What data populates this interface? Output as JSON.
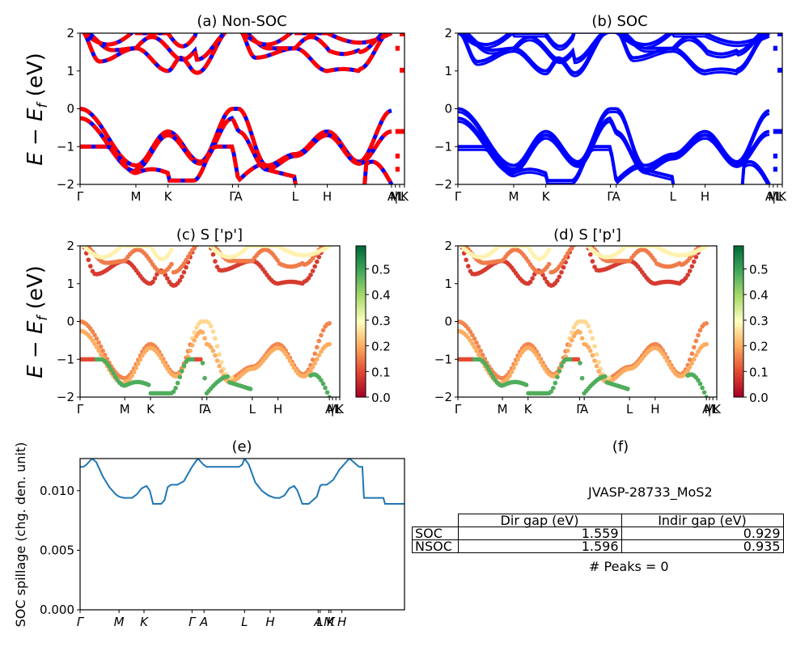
{
  "chart_data": [
    {
      "id": "a",
      "type": "line",
      "title": "(a) Non-SOC",
      "ylabel": "E − E_f (eV)",
      "ylim": [
        -2,
        2
      ],
      "yticks": [
        "2",
        "1",
        "0",
        "−1",
        "−2"
      ],
      "ytick_values": [
        2,
        1,
        0,
        -1,
        -2
      ],
      "kpath_labels": [
        "Γ",
        "M",
        "K",
        "Γ",
        "A",
        "L",
        "H",
        "A",
        "M",
        "|L",
        "K"
      ],
      "kpath_positions": [
        0,
        0.172,
        0.271,
        0.47,
        0.488,
        0.663,
        0.762,
        0.96,
        0.972,
        0.985,
        1.0
      ],
      "series": [
        {
          "name": "Non-SOC bands",
          "color": "#ff0000",
          "style": "solid"
        },
        {
          "name": "SOC bands",
          "color": "#0000ff",
          "style": "dashed"
        }
      ]
    },
    {
      "id": "b",
      "type": "line",
      "title": "(b) SOC",
      "ylim": [
        -2,
        2
      ],
      "yticks": [
        "2",
        "1",
        "0",
        "−1",
        "−2"
      ],
      "ytick_values": [
        2,
        1,
        0,
        -1,
        -2
      ],
      "kpath_labels": [
        "Γ",
        "M",
        "K",
        "Γ",
        "A",
        "L",
        "H",
        "A",
        "M",
        "|L",
        "K"
      ],
      "kpath_positions": [
        0,
        0.172,
        0.271,
        0.47,
        0.488,
        0.663,
        0.762,
        0.96,
        0.972,
        0.985,
        1.0
      ],
      "series": [
        {
          "name": "SOC bands",
          "color": "#0000ff",
          "style": "solid"
        }
      ]
    },
    {
      "id": "c",
      "type": "scatter",
      "title": "(c)  S ['p']",
      "ylabel": "E − E_f (eV)",
      "ylim": [
        -2,
        2
      ],
      "yticks": [
        "2",
        "1",
        "0",
        "−1",
        "−2"
      ],
      "ytick_values": [
        2,
        1,
        0,
        -1,
        -2
      ],
      "kpath_labels": [
        "Γ",
        "M",
        "K",
        "Γ",
        "A",
        "L",
        "H",
        "A",
        "M",
        "|L",
        "K"
      ],
      "kpath_positions": [
        0,
        0.172,
        0.271,
        0.47,
        0.488,
        0.663,
        0.762,
        0.96,
        0.972,
        0.985,
        1.0
      ],
      "colorbar": {
        "cmap": "RdYlGn",
        "range": [
          0,
          0.59
        ],
        "ticks": [
          "0.0",
          "0.1",
          "0.2",
          "0.3",
          "0.4",
          "0.5"
        ],
        "tick_values": [
          0,
          0.1,
          0.2,
          0.3,
          0.4,
          0.5
        ]
      }
    },
    {
      "id": "d",
      "type": "scatter",
      "title": "(d) S ['p']",
      "ylim": [
        -2,
        2
      ],
      "yticks": [
        "2",
        "1",
        "0",
        "−1",
        "−2"
      ],
      "ytick_values": [
        2,
        1,
        0,
        -1,
        -2
      ],
      "kpath_labels": [
        "Γ",
        "M",
        "K",
        "Γ",
        "A",
        "L",
        "H",
        "A",
        "M",
        "|L",
        "K"
      ],
      "kpath_positions": [
        0,
        0.172,
        0.271,
        0.47,
        0.488,
        0.663,
        0.762,
        0.96,
        0.972,
        0.985,
        1.0
      ],
      "colorbar": {
        "cmap": "RdYlGn",
        "range": [
          0,
          0.59
        ],
        "ticks": [
          "0.0",
          "0.1",
          "0.2",
          "0.3",
          "0.4",
          "0.5"
        ],
        "tick_values": [
          0,
          0.1,
          0.2,
          0.3,
          0.4,
          0.5
        ]
      }
    },
    {
      "id": "e",
      "type": "line",
      "title": "(e)",
      "ylabel": "SOC spillage (chg. den. unit)",
      "ylim": [
        0,
        0.0127
      ],
      "yticks": [
        "0.000",
        "0.005",
        "0.010"
      ],
      "ytick_values": [
        0,
        0.005,
        0.01
      ],
      "kpath_labels": [
        "Γ",
        "M",
        "K",
        "Γ",
        "A",
        "L",
        "H",
        "A",
        "L",
        "M",
        "K",
        "H"
      ],
      "kpath_positions": [
        0,
        0.12,
        0.197,
        0.345,
        0.382,
        0.507,
        0.586,
        0.734,
        0.74,
        0.767,
        0.773,
        0.807
      ],
      "series": [
        {
          "name": "spillage",
          "color": "#1f77b4",
          "x": [
            0,
            0.01,
            0.02,
            0.037,
            0.05,
            0.07,
            0.09,
            0.11,
            0.12,
            0.135,
            0.16,
            0.175,
            0.19,
            0.205,
            0.215,
            0.225,
            0.25,
            0.26,
            0.27,
            0.28,
            0.3,
            0.32,
            0.345,
            0.363,
            0.38,
            0.39,
            0.4,
            0.43,
            0.46,
            0.49,
            0.5,
            0.507,
            0.52,
            0.54,
            0.56,
            0.58,
            0.6,
            0.615,
            0.63,
            0.645,
            0.66,
            0.67,
            0.685,
            0.705,
            0.73,
            0.74,
            0.745,
            0.76,
            0.78,
            0.8,
            0.83,
            0.835,
            0.86,
            0.87,
            0.875,
            0.9,
            0.92,
            0.935,
            0.94,
            0.96,
            1.0
          ],
          "y": [
            0.012,
            0.012,
            0.0122,
            0.0127,
            0.0124,
            0.0112,
            0.0103,
            0.0097,
            0.0095,
            0.0094,
            0.0094,
            0.0097,
            0.0102,
            0.0104,
            0.01,
            0.0089,
            0.0089,
            0.0092,
            0.0103,
            0.0105,
            0.0105,
            0.0108,
            0.012,
            0.0127,
            0.0122,
            0.012,
            0.012,
            0.012,
            0.012,
            0.012,
            0.0122,
            0.0127,
            0.0122,
            0.0107,
            0.01,
            0.0096,
            0.0094,
            0.0094,
            0.0096,
            0.0102,
            0.0104,
            0.01,
            0.0089,
            0.0089,
            0.0095,
            0.0104,
            0.0105,
            0.0105,
            0.0109,
            0.0118,
            0.0127,
            0.0126,
            0.012,
            0.012,
            0.0094,
            0.0094,
            0.0094,
            0.0094,
            0.0089,
            0.0089,
            0.0089
          ]
        }
      ]
    }
  ],
  "info_panel": {
    "title": "(f)",
    "material": "JVASP-28733_MoS2",
    "table": {
      "headers": [
        "",
        "Dir gap (eV)",
        "Indir gap (eV)"
      ],
      "rows": [
        {
          "label": "SOC",
          "dir_gap": "1.559",
          "indir_gap": "0.929"
        },
        {
          "label": "NSOC",
          "dir_gap": "1.596",
          "indir_gap": "0.935"
        }
      ]
    },
    "peaks": "# Peaks = 0"
  }
}
